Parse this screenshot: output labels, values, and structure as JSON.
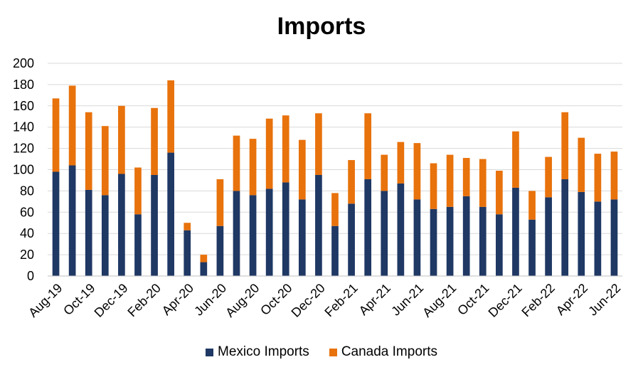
{
  "chart_data": {
    "type": "bar",
    "stacked": true,
    "title": "Imports",
    "categories": [
      "Aug-19",
      "Sep-19",
      "Oct-19",
      "Nov-19",
      "Dec-19",
      "Jan-20",
      "Feb-20",
      "Mar-20",
      "Apr-20",
      "May-20",
      "Jun-20",
      "Jul-20",
      "Aug-20",
      "Sep-20",
      "Oct-20",
      "Nov-20",
      "Dec-20",
      "Jan-21",
      "Feb-21",
      "Mar-21",
      "Apr-21",
      "May-21",
      "Jun-21",
      "Jul-21",
      "Aug-21",
      "Sep-21",
      "Oct-21",
      "Nov-21",
      "Dec-21",
      "Jan-22",
      "Feb-22",
      "Mar-22",
      "Apr-22",
      "May-22",
      "Jun-22"
    ],
    "tick_labels": [
      "Aug-19",
      "Oct-19",
      "Dec-19",
      "Feb-20",
      "Apr-20",
      "Jun-20",
      "Aug-20",
      "Oct-20",
      "Dec-20",
      "Feb-21",
      "Apr-21",
      "Jun-21",
      "Aug-21",
      "Oct-21",
      "Dec-21",
      "Feb-22",
      "Apr-22",
      "Jun-22"
    ],
    "series": [
      {
        "name": "Mexico Imports",
        "color": "#1f3864",
        "values": [
          98,
          104,
          81,
          76,
          96,
          58,
          95,
          116,
          43,
          13,
          47,
          80,
          76,
          82,
          88,
          72,
          95,
          47,
          68,
          91,
          80,
          87,
          72,
          63,
          65,
          75,
          65,
          58,
          83,
          53,
          74,
          91,
          79,
          70,
          72
        ]
      },
      {
        "name": "Canada Imports",
        "color": "#e8720c",
        "values": [
          69,
          75,
          73,
          65,
          64,
          44,
          63,
          68,
          7,
          7,
          44,
          52,
          53,
          66,
          63,
          56,
          58,
          31,
          41,
          62,
          34,
          39,
          53,
          43,
          49,
          36,
          45,
          41,
          53,
          27,
          38,
          63,
          51,
          45,
          45
        ]
      }
    ],
    "ylim": [
      0,
      200
    ],
    "yticks": [
      "0",
      "20",
      "40",
      "60",
      "80",
      "100",
      "120",
      "140",
      "160",
      "180",
      "200"
    ],
    "grid": true,
    "legend_position": "bottom"
  }
}
